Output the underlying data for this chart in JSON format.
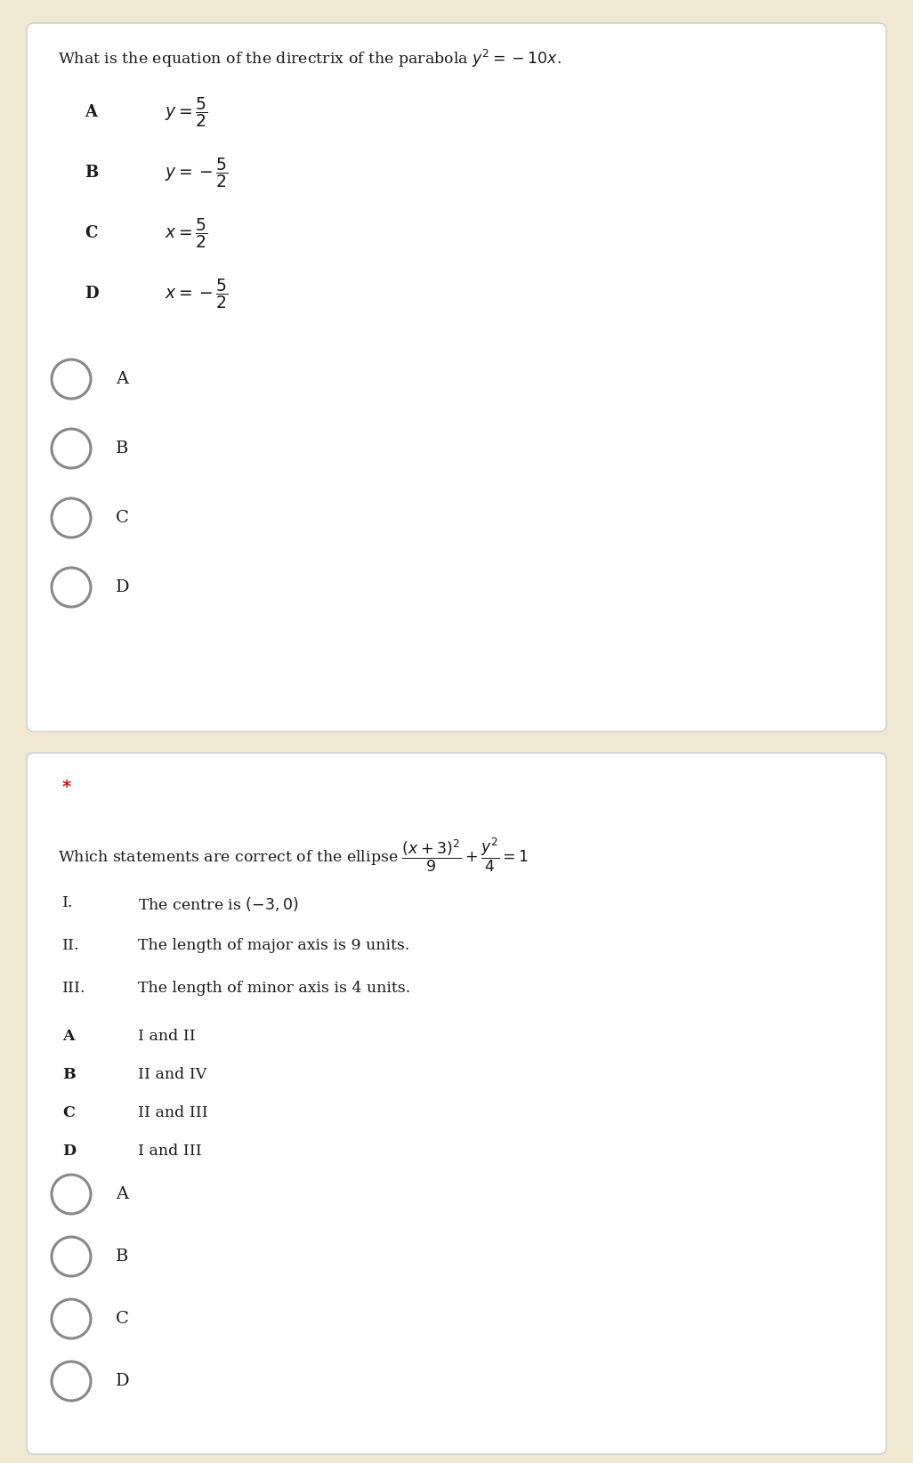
{
  "bg_color": "#f0e8d0",
  "card_bg": "#ffffff",
  "text_color": "#1a1a1a",
  "label_bold_color": "#1a1a1a",
  "radio_color": "#888888",
  "star_color": "#cc0000",
  "q1_question": "What is the equation of the directrix of the parabola $y^2 = -10x$.",
  "q1_options": [
    {
      "label": "A",
      "math": "$y = \\dfrac{5}{2}$"
    },
    {
      "label": "B",
      "math": "$y = -\\dfrac{5}{2}$"
    },
    {
      "label": "C",
      "math": "$x = \\dfrac{5}{2}$"
    },
    {
      "label": "D",
      "math": "$x = -\\dfrac{5}{2}$"
    }
  ],
  "q1_radio_labels": [
    "A",
    "B",
    "C",
    "D"
  ],
  "q2_star": "*",
  "q2_question": "Which statements are correct of the ellipse $\\dfrac{(x+3)^2}{9} + \\dfrac{y^2}{4} = 1$",
  "q2_statements": [
    {
      "num": "I.",
      "text": "The centre is $(-3, 0)$"
    },
    {
      "num": "II.",
      "text": "The length of major axis is 9 units."
    },
    {
      "num": "III.",
      "text": "The length of minor axis is 4 units."
    }
  ],
  "q2_options": [
    {
      "label": "A",
      "text": "I and II"
    },
    {
      "label": "B",
      "text": "II and IV"
    },
    {
      "label": "C",
      "text": "II and III"
    },
    {
      "label": "D",
      "text": "I and III"
    }
  ],
  "q2_radio_labels": [
    "A",
    "B",
    "C",
    "D"
  ]
}
